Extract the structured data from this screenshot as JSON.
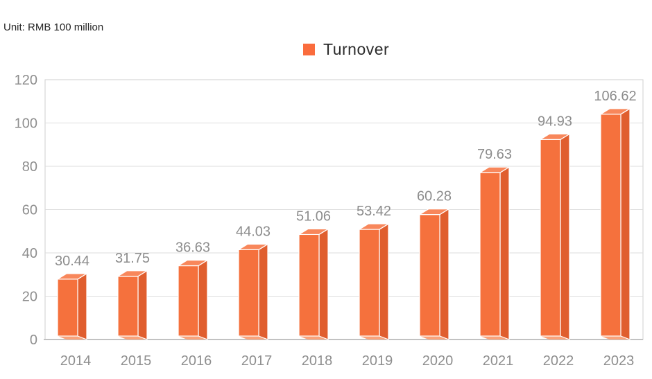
{
  "unit_note": "Unit: RMB 100 million",
  "legend": {
    "label": "Turnover",
    "swatch_color": "#fa6c3d"
  },
  "colors": {
    "bar_front": "#f5713d",
    "bar_top": "#f8875b",
    "bar_side": "#e05e2e",
    "bar_bottom": "#f9a27b",
    "bar_edge": "#ffffff",
    "grid_line": "#dddddd",
    "plot_border": "#cfcfcf",
    "baseline": "#c2c2c2",
    "axis_text": "#8e8e8e",
    "value_text": "#8c8c8c",
    "dark_text": "#262626"
  },
  "chart_data": {
    "type": "bar",
    "title": "",
    "unit_note": "Unit: RMB 100 million",
    "categories": [
      "2014",
      "2015",
      "2016",
      "2017",
      "2018",
      "2019",
      "2020",
      "2021",
      "2022",
      "2023"
    ],
    "series": [
      {
        "name": "Turnover",
        "values": [
          30.44,
          31.75,
          36.63,
          44.03,
          51.06,
          53.42,
          60.28,
          79.63,
          94.93,
          106.62
        ]
      }
    ],
    "value_labels": [
      "30.44",
      "31.75",
      "36.63",
      "44.03",
      "51.06",
      "53.42",
      "60.28",
      "79.63",
      "94.93",
      "106.62"
    ],
    "xlabel": "",
    "ylabel": "",
    "ylim": [
      0,
      120
    ],
    "ytick_step": 20,
    "yticks": [
      "0",
      "20",
      "40",
      "60",
      "80",
      "100",
      "120"
    ],
    "grid": true,
    "legend_position": "top-center",
    "bar_style": "pseudo-3d"
  }
}
